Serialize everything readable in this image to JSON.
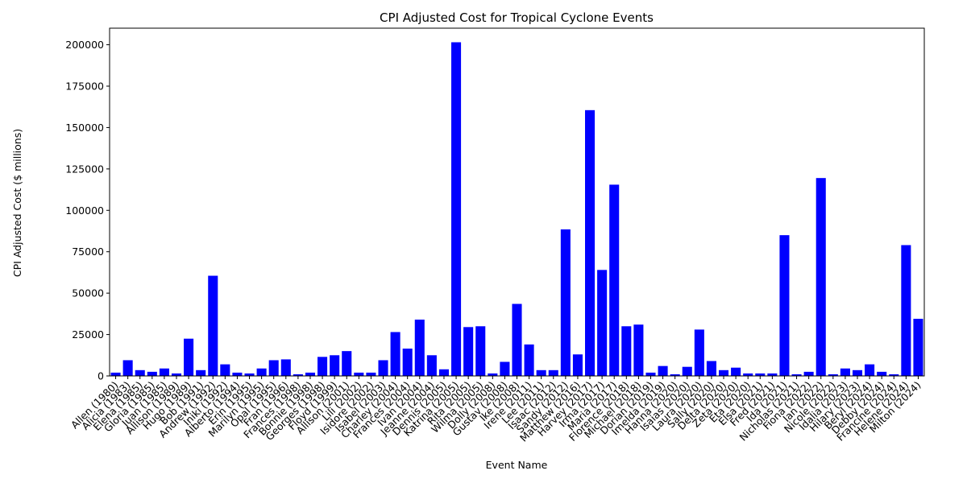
{
  "chart_data": {
    "type": "bar",
    "title": "CPI Adjusted Cost for Tropical Cyclone Events",
    "xlabel": "Event Name",
    "ylabel": "CPI Adjusted Cost ($ millions)",
    "ylim": [
      0,
      210000
    ],
    "yticks": [
      0,
      25000,
      50000,
      75000,
      100000,
      125000,
      150000,
      175000,
      200000
    ],
    "bar_color": "#0000ff",
    "grid": false,
    "categories": [
      "Allen (1980)",
      "Alicia (1983)",
      "Elena (1985)",
      "Gloria (1985)",
      "Juan (1985)",
      "Allison (1989)",
      "Hugo (1989)",
      "Bob (1991)",
      "Andrew (1992)",
      "Iniki (1992)",
      "Alberto (1994)",
      "Erin (1995)",
      "Marilyn (1995)",
      "Opal (1995)",
      "Fran (1996)",
      "Frances (1998)",
      "Bonnie (1998)",
      "Georges (1998)",
      "Floyd (1999)",
      "Allison (2001)",
      "Lili (2002)",
      "Isidore (2002)",
      "Isabel (2003)",
      "Charley (2004)",
      "Frances (2004)",
      "Ivan (2004)",
      "Jeanne (2004)",
      "Dennis (2005)",
      "Katrina (2005)",
      "Rita (2005)",
      "Wilma (2005)",
      "Dolly (2008)",
      "Gustav (2008)",
      "Ike (2008)",
      "Irene (2011)",
      "Lee (2011)",
      "Isaac (2012)",
      "Sandy (2012)",
      "Matthew (2016)",
      "Harvey (2017)",
      "Irma (2017)",
      "Maria (2017)",
      "Florence (2018)",
      "Michael (2018)",
      "Dorian (2019)",
      "Imelda (2019)",
      "Hanna (2020)",
      "Isaias (2020)",
      "Laura (2020)",
      "Sally (2020)",
      "Delta (2020)",
      "Zeta (2020)",
      "Eta (2020)",
      "Elsa (2021)",
      "Fred (2021)",
      "Ida (2021)",
      "Nicholas (2021)",
      "Fiona (2022)",
      "Ian (2022)",
      "Nicole (2022)",
      "Idalia (2023)",
      "Hilary (2023)",
      "Beryl (2024)",
      "Debby (2024)",
      "Francine (2024)",
      "Helene (2024)",
      "Milton (2024)"
    ],
    "values": [
      2000,
      9500,
      3500,
      2500,
      4500,
      1500,
      22500,
      3500,
      60500,
      7000,
      2000,
      1500,
      4500,
      9500,
      10000,
      1000,
      2000,
      11500,
      12500,
      15000,
      2000,
      2000,
      9500,
      26500,
      16500,
      34000,
      12500,
      4000,
      201500,
      29500,
      30000,
      1500,
      8500,
      43500,
      19000,
      3500,
      3500,
      88500,
      13000,
      160500,
      64000,
      115500,
      30000,
      31000,
      2000,
      6000,
      1000,
      5500,
      28000,
      9000,
      3500,
      5000,
      1500,
      1500,
      1500,
      85000,
      1000,
      2500,
      119500,
      1000,
      4500,
      3500,
      7000,
      2500,
      1000,
      79000,
      34500
    ]
  }
}
